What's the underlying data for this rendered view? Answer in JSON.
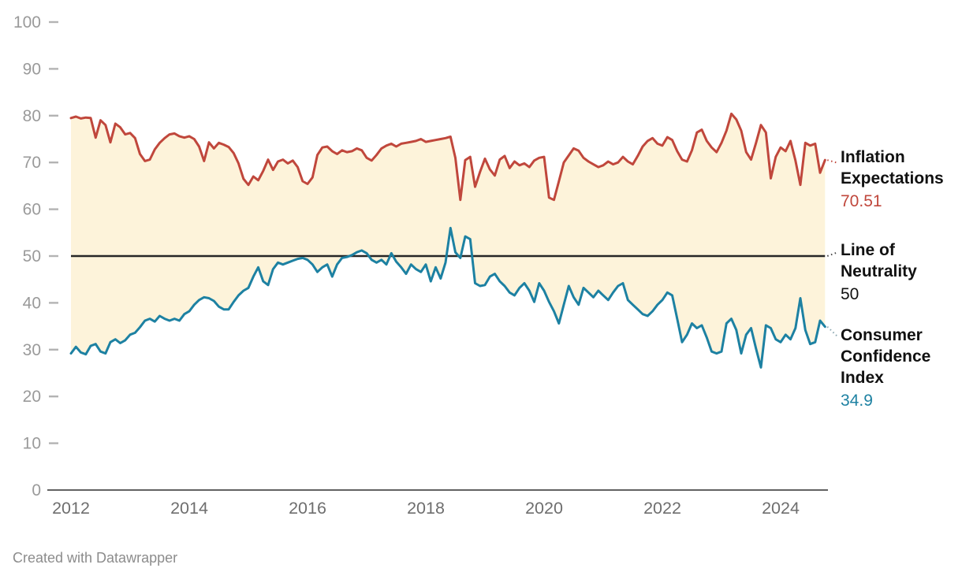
{
  "chart_data": {
    "type": "line",
    "title": "",
    "xlabel": "",
    "ylabel": "",
    "x_start": 2012,
    "x_step": 0.0833333,
    "x_ticks": [
      2012,
      2014,
      2016,
      2018,
      2020,
      2022,
      2024
    ],
    "y_ticks": [
      0,
      10,
      20,
      30,
      40,
      50,
      60,
      70,
      80,
      90,
      100
    ],
    "ylim": [
      0,
      100
    ],
    "grid": false,
    "legend_position": "right-direct-labels",
    "band_fill": "#fdf3da",
    "neutral_value": 50,
    "neutral_color": "#262626",
    "axis_color": "#2e2e2e",
    "series": [
      {
        "name": "Inflation Expectations",
        "color": "#c0473c",
        "current_value": 70.51,
        "values": [
          79.5,
          79.8,
          79.4,
          79.6,
          79.5,
          75.3,
          79.0,
          78.0,
          74.3,
          78.3,
          77.5,
          76.0,
          76.3,
          75.2,
          71.8,
          70.3,
          70.6,
          72.8,
          74.2,
          75.2,
          76.0,
          76.2,
          75.6,
          75.3,
          75.6,
          75.0,
          73.4,
          70.3,
          74.3,
          73.0,
          74.2,
          73.8,
          73.3,
          72.0,
          69.8,
          66.5,
          65.2,
          67.0,
          66.2,
          68.2,
          70.6,
          68.4,
          70.2,
          70.6,
          69.8,
          70.4,
          69.0,
          66.0,
          65.4,
          66.8,
          71.6,
          73.2,
          73.4,
          72.4,
          71.8,
          72.6,
          72.2,
          72.4,
          73.0,
          72.6,
          71.0,
          70.4,
          71.6,
          73.0,
          73.6,
          74.0,
          73.4,
          74.0,
          74.2,
          74.4,
          74.6,
          75.0,
          74.4,
          74.6,
          74.8,
          75.0,
          75.2,
          75.5,
          71.0,
          62.0,
          70.5,
          71.2,
          64.8,
          68.0,
          70.8,
          68.5,
          67.2,
          70.6,
          71.4,
          68.8,
          70.2,
          69.4,
          69.8,
          69.0,
          70.4,
          71.0,
          71.2,
          62.5,
          62.0,
          66.0,
          70.0,
          71.5,
          73.0,
          72.5,
          71.0,
          70.2,
          69.6,
          69.0,
          69.4,
          70.2,
          69.6,
          70.0,
          71.2,
          70.2,
          69.6,
          71.4,
          73.4,
          74.6,
          75.2,
          74.0,
          73.6,
          75.4,
          74.8,
          72.4,
          70.6,
          70.2,
          72.6,
          76.4,
          77.0,
          74.6,
          73.2,
          72.2,
          74.2,
          76.8,
          80.4,
          79.2,
          76.8,
          72.2,
          70.6,
          74.2,
          78.0,
          76.4,
          66.6,
          71.2,
          73.2,
          72.4,
          74.6,
          70.4,
          65.2,
          74.2,
          73.6,
          74.0,
          67.8,
          70.51
        ]
      },
      {
        "name": "Consumer Confidence Index",
        "color": "#1d81a2",
        "current_value": 34.9,
        "values": [
          29.2,
          30.6,
          29.4,
          29.0,
          30.8,
          31.2,
          29.6,
          29.2,
          31.6,
          32.2,
          31.4,
          32.0,
          33.2,
          33.6,
          34.8,
          36.2,
          36.6,
          36.0,
          37.2,
          36.6,
          36.2,
          36.6,
          36.2,
          37.6,
          38.2,
          39.6,
          40.6,
          41.2,
          41.0,
          40.4,
          39.2,
          38.6,
          38.6,
          40.2,
          41.6,
          42.6,
          43.2,
          45.6,
          47.6,
          44.6,
          43.8,
          47.2,
          48.6,
          48.2,
          48.6,
          49.0,
          49.4,
          49.6,
          49.2,
          48.2,
          46.6,
          47.6,
          48.2,
          45.6,
          48.2,
          49.6,
          49.8,
          50.2,
          50.8,
          51.2,
          50.6,
          49.2,
          48.6,
          49.2,
          48.2,
          50.6,
          48.8,
          47.6,
          46.2,
          48.2,
          47.2,
          46.6,
          48.2,
          44.6,
          47.6,
          45.2,
          48.6,
          56.0,
          50.8,
          49.6,
          54.2,
          53.6,
          44.2,
          43.6,
          43.8,
          45.6,
          46.2,
          44.6,
          43.6,
          42.2,
          41.6,
          43.2,
          44.2,
          42.6,
          40.2,
          44.2,
          42.6,
          40.2,
          38.2,
          35.6,
          39.6,
          43.6,
          41.2,
          39.6,
          43.2,
          42.2,
          41.2,
          42.6,
          41.6,
          40.6,
          42.2,
          43.6,
          44.2,
          40.6,
          39.6,
          38.6,
          37.6,
          37.2,
          38.2,
          39.6,
          40.6,
          42.2,
          41.6,
          36.6,
          31.6,
          33.2,
          35.6,
          34.6,
          35.2,
          32.6,
          29.6,
          29.2,
          29.6,
          35.6,
          36.6,
          34.2,
          29.2,
          33.2,
          34.6,
          30.2,
          26.2,
          35.2,
          34.6,
          32.2,
          31.6,
          33.2,
          32.2,
          34.6,
          41.0,
          34.2,
          31.2,
          31.6,
          36.2,
          34.9
        ]
      }
    ]
  },
  "labels": {
    "inflation_title": "Inflation Expectations",
    "inflation_value": "70.51",
    "neutrality_title": "Line of Neutrality",
    "neutrality_value": "50",
    "consumer_title": "Consumer Confidence Index",
    "consumer_value": "34.9"
  },
  "footer": {
    "credit": "Created with Datawrapper"
  }
}
